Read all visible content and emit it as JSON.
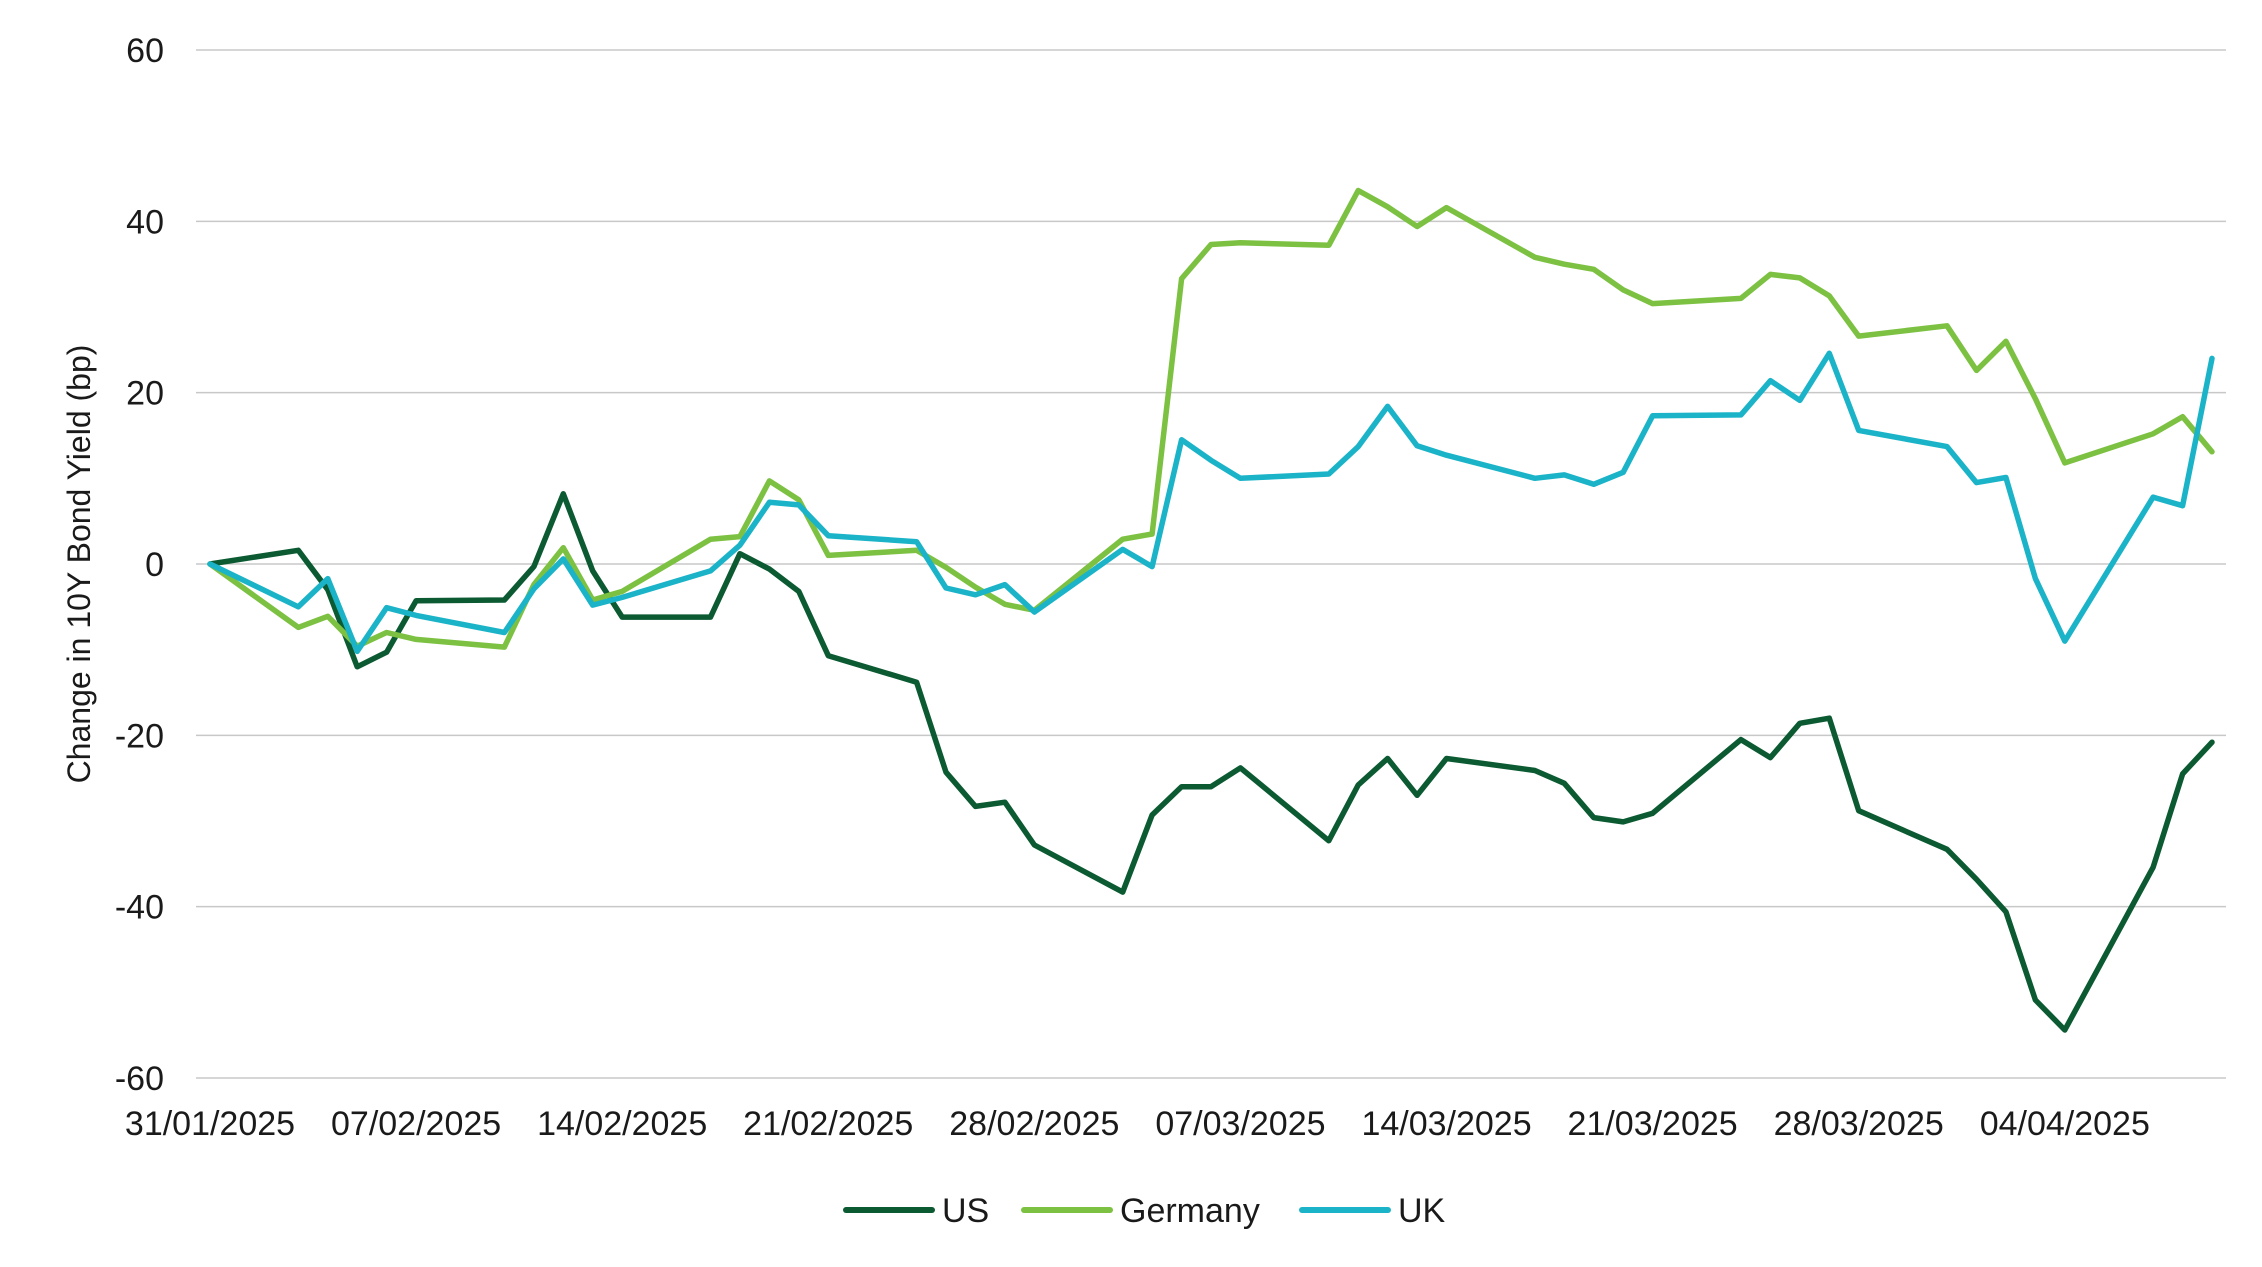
{
  "chart_data": {
    "type": "line",
    "title": "",
    "xlabel": "",
    "ylabel": "Change in 10Y Bond Yield (bp)",
    "ylim": [
      -60,
      60
    ],
    "yticks": [
      -60,
      -40,
      -20,
      0,
      20,
      40,
      60
    ],
    "x_start": "31/01/2025",
    "x_end": "09/04/2025",
    "xticks": [
      "31/01/2025",
      "07/02/2025",
      "14/02/2025",
      "21/02/2025",
      "28/02/2025",
      "07/03/2025",
      "14/03/2025",
      "21/03/2025",
      "28/03/2025",
      "04/04/2025"
    ],
    "grid": "horizontal",
    "legend_position": "bottom-center",
    "series": [
      {
        "name": "US",
        "color": "#0b5a32",
        "points": [
          [
            "31/01/2025",
            0
          ],
          [
            "03/02/2025",
            1.6
          ],
          [
            "04/02/2025",
            -3
          ],
          [
            "05/02/2025",
            -12
          ],
          [
            "06/02/2025",
            -10.3
          ],
          [
            "07/02/2025",
            -4.3
          ],
          [
            "10/02/2025",
            -4.2
          ],
          [
            "11/02/2025",
            -0.3
          ],
          [
            "12/02/2025",
            8.2
          ],
          [
            "13/02/2025",
            -0.8
          ],
          [
            "14/02/2025",
            -6.2
          ],
          [
            "17/02/2025",
            -6.2
          ],
          [
            "18/02/2025",
            1.2
          ],
          [
            "19/02/2025",
            -0.6
          ],
          [
            "20/02/2025",
            -3.2
          ],
          [
            "21/02/2025",
            -10.7
          ],
          [
            "24/02/2025",
            -13.8
          ],
          [
            "25/02/2025",
            -24.3
          ],
          [
            "26/02/2025",
            -28.3
          ],
          [
            "27/02/2025",
            -27.8
          ],
          [
            "28/02/2025",
            -32.8
          ],
          [
            "03/03/2025",
            -38.3
          ],
          [
            "04/03/2025",
            -29.3
          ],
          [
            "05/03/2025",
            -26
          ],
          [
            "06/03/2025",
            -26
          ],
          [
            "07/03/2025",
            -23.8
          ],
          [
            "10/03/2025",
            -32.3
          ],
          [
            "11/03/2025",
            -25.8
          ],
          [
            "12/03/2025",
            -22.7
          ],
          [
            "13/03/2025",
            -27
          ],
          [
            "14/03/2025",
            -22.7
          ],
          [
            "17/03/2025",
            -24.1
          ],
          [
            "18/03/2025",
            -25.6
          ],
          [
            "19/03/2025",
            -29.6
          ],
          [
            "20/03/2025",
            -30.1
          ],
          [
            "21/03/2025",
            -29.1
          ],
          [
            "24/03/2025",
            -20.5
          ],
          [
            "25/03/2025",
            -22.6
          ],
          [
            "26/03/2025",
            -18.6
          ],
          [
            "27/03/2025",
            -18
          ],
          [
            "28/03/2025",
            -28.8
          ],
          [
            "31/03/2025",
            -33.3
          ],
          [
            "01/04/2025",
            -36.8
          ],
          [
            "02/04/2025",
            -40.6
          ],
          [
            "03/04/2025",
            -50.9
          ],
          [
            "04/04/2025",
            -54.4
          ],
          [
            "07/04/2025",
            -35.4
          ],
          [
            "08/04/2025",
            -24.5
          ],
          [
            "09/04/2025",
            -20.8
          ]
        ]
      },
      {
        "name": "Germany",
        "color": "#7cc142",
        "points": [
          [
            "31/01/2025",
            0
          ],
          [
            "03/02/2025",
            -7.4
          ],
          [
            "04/02/2025",
            -6.1
          ],
          [
            "05/02/2025",
            -9.6
          ],
          [
            "06/02/2025",
            -8
          ],
          [
            "07/02/2025",
            -8.8
          ],
          [
            "10/02/2025",
            -9.7
          ],
          [
            "11/02/2025",
            -2.4
          ],
          [
            "12/02/2025",
            1.9
          ],
          [
            "13/02/2025",
            -4.2
          ],
          [
            "14/02/2025",
            -3.2
          ],
          [
            "17/02/2025",
            2.9
          ],
          [
            "18/02/2025",
            3.2
          ],
          [
            "19/02/2025",
            9.7
          ],
          [
            "20/02/2025",
            7.5
          ],
          [
            "21/02/2025",
            1
          ],
          [
            "24/02/2025",
            1.6
          ],
          [
            "25/02/2025",
            -0.4
          ],
          [
            "26/02/2025",
            -2.7
          ],
          [
            "27/02/2025",
            -4.7
          ],
          [
            "28/02/2025",
            -5.4
          ],
          [
            "03/03/2025",
            2.9
          ],
          [
            "04/03/2025",
            3.5
          ],
          [
            "05/03/2025",
            33.3
          ],
          [
            "06/03/2025",
            37.3
          ],
          [
            "07/03/2025",
            37.5
          ],
          [
            "10/03/2025",
            37.2
          ],
          [
            "11/03/2025",
            43.6
          ],
          [
            "12/03/2025",
            41.7
          ],
          [
            "13/03/2025",
            39.4
          ],
          [
            "14/03/2025",
            41.6
          ],
          [
            "17/03/2025",
            35.8
          ],
          [
            "18/03/2025",
            35
          ],
          [
            "19/03/2025",
            34.4
          ],
          [
            "20/03/2025",
            32
          ],
          [
            "21/03/2025",
            30.4
          ],
          [
            "24/03/2025",
            31
          ],
          [
            "25/03/2025",
            33.8
          ],
          [
            "26/03/2025",
            33.4
          ],
          [
            "27/03/2025",
            31.3
          ],
          [
            "28/03/2025",
            26.6
          ],
          [
            "31/03/2025",
            27.8
          ],
          [
            "01/04/2025",
            22.6
          ],
          [
            "02/04/2025",
            26
          ],
          [
            "03/04/2025",
            19.3
          ],
          [
            "04/04/2025",
            11.8
          ],
          [
            "07/04/2025",
            15.2
          ],
          [
            "08/04/2025",
            17.2
          ],
          [
            "09/04/2025",
            13.1
          ]
        ]
      },
      {
        "name": "UK",
        "color": "#1bb3c8",
        "points": [
          [
            "31/01/2025",
            0
          ],
          [
            "03/02/2025",
            -5
          ],
          [
            "04/02/2025",
            -1.7
          ],
          [
            "05/02/2025",
            -10.2
          ],
          [
            "06/02/2025",
            -5.1
          ],
          [
            "07/02/2025",
            -6
          ],
          [
            "10/02/2025",
            -8
          ],
          [
            "11/02/2025",
            -2.9
          ],
          [
            "12/02/2025",
            0.6
          ],
          [
            "13/02/2025",
            -4.8
          ],
          [
            "14/02/2025",
            -3.9
          ],
          [
            "17/02/2025",
            -0.8
          ],
          [
            "18/02/2025",
            2.2
          ],
          [
            "19/02/2025",
            7.2
          ],
          [
            "20/02/2025",
            6.9
          ],
          [
            "21/02/2025",
            3.3
          ],
          [
            "24/02/2025",
            2.6
          ],
          [
            "25/02/2025",
            -2.8
          ],
          [
            "26/02/2025",
            -3.6
          ],
          [
            "27/02/2025",
            -2.4
          ],
          [
            "28/02/2025",
            -5.6
          ],
          [
            "03/03/2025",
            1.7
          ],
          [
            "04/03/2025",
            -0.3
          ],
          [
            "05/03/2025",
            14.5
          ],
          [
            "06/03/2025",
            12.1
          ],
          [
            "07/03/2025",
            10
          ],
          [
            "10/03/2025",
            10.5
          ],
          [
            "11/03/2025",
            13.7
          ],
          [
            "12/03/2025",
            18.4
          ],
          [
            "13/03/2025",
            13.8
          ],
          [
            "14/03/2025",
            12.7
          ],
          [
            "17/03/2025",
            10
          ],
          [
            "18/03/2025",
            10.4
          ],
          [
            "19/03/2025",
            9.3
          ],
          [
            "20/03/2025",
            10.7
          ],
          [
            "21/03/2025",
            17.3
          ],
          [
            "24/03/2025",
            17.4
          ],
          [
            "25/03/2025",
            21.4
          ],
          [
            "26/03/2025",
            19.1
          ],
          [
            "27/03/2025",
            24.6
          ],
          [
            "28/03/2025",
            15.6
          ],
          [
            "31/03/2025",
            13.7
          ],
          [
            "01/04/2025",
            9.5
          ],
          [
            "02/04/2025",
            10.1
          ],
          [
            "03/04/2025",
            -1.7
          ],
          [
            "04/04/2025",
            -9
          ],
          [
            "07/04/2025",
            7.8
          ],
          [
            "08/04/2025",
            6.8
          ],
          [
            "09/04/2025",
            24
          ]
        ]
      }
    ]
  }
}
